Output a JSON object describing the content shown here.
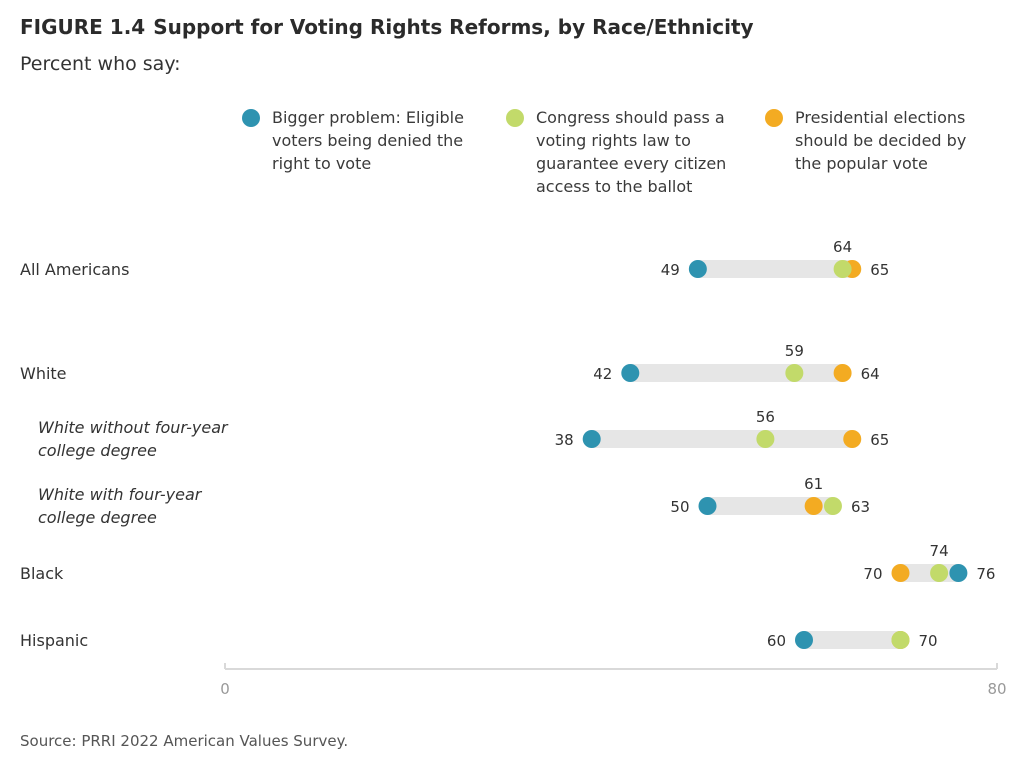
{
  "figure": {
    "number": "FIGURE 1.4",
    "title": "Support for Voting Rights Reforms, by Race/Ethnicity",
    "subtitle": "Percent who say:",
    "source": "Source: PRRI 2022 American Values Survey."
  },
  "colors": {
    "bigger_problem": "#2e93b0",
    "congress": "#c2da6a",
    "popular_vote": "#f3ab22",
    "range_bar": "#e6e6e6",
    "axis": "#d9d9d9"
  },
  "chart_data": {
    "type": "scatter",
    "subtype": "dot-range",
    "xlim": [
      0,
      80
    ],
    "x_ticks": [
      0,
      80
    ],
    "grid": false,
    "legend_position": "top",
    "series": [
      {
        "key": "bigger_problem",
        "name": "Bigger problem: Eligible voters being denied the right to vote",
        "values": [
          49,
          42,
          38,
          50,
          76,
          60
        ]
      },
      {
        "key": "congress",
        "name": "Congress should pass a voting rights law to guarantee every citizen access to the ballot",
        "values": [
          64,
          59,
          56,
          63,
          74,
          70
        ]
      },
      {
        "key": "popular_vote",
        "name": "Presidential elections should be decided by the popular vote",
        "values": [
          65,
          64,
          65,
          61,
          70,
          70
        ]
      }
    ],
    "categories": [
      {
        "label": "All Americans",
        "lines": [
          "All Americans"
        ],
        "sub": false
      },
      {
        "label": "White",
        "lines": [
          "White"
        ],
        "sub": false
      },
      {
        "label": "White without four-year college degree",
        "lines": [
          "White without four-year",
          "college degree"
        ],
        "sub": true
      },
      {
        "label": "White with four-year college degree",
        "lines": [
          "White with four-year",
          "college degree"
        ],
        "sub": true
      },
      {
        "label": "Black",
        "lines": [
          "Black"
        ],
        "sub": false
      },
      {
        "label": "Hispanic",
        "lines": [
          "Hispanic"
        ],
        "sub": false
      }
    ],
    "data_labels": [
      [
        "49",
        "64",
        "65"
      ],
      [
        "42",
        "59",
        "64"
      ],
      [
        "38",
        "56",
        "65"
      ],
      [
        "50",
        "63",
        "61"
      ],
      [
        "76",
        "74",
        "70"
      ],
      [
        "60",
        "",
        "70"
      ]
    ]
  }
}
